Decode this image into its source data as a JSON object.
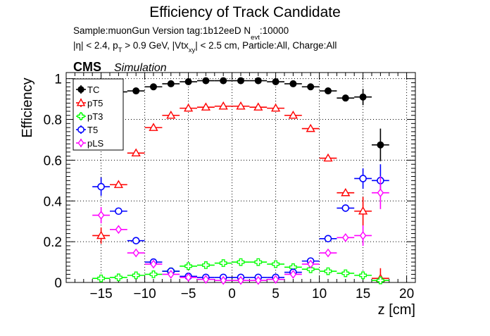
{
  "chart_data": {
    "type": "scatter",
    "title": "Efficiency of Track Candidate",
    "subtitle": {
      "sample_prefix": "Sample:muonGun   Version tag:1b12eeD  N",
      "sample_sub": "evt",
      "sample_suffix": ":10000",
      "cuts_p1": "|η| < 2.4, p",
      "cuts_sub1": "T",
      "cuts_p2": " > 0.9 GeV, |Vtx",
      "cuts_sub2": "xy",
      "cuts_p3": "| < 2.5 cm, Particle:All, Charge:All"
    },
    "cms_label": "CMS",
    "simulation_label": "Simulation",
    "xlabel": "z [cm]",
    "ylabel": "Efficiency",
    "xlim": [
      -19,
      21
    ],
    "ylim": [
      0,
      1.03
    ],
    "xticks": [
      -15,
      -10,
      -5,
      0,
      5,
      10,
      15,
      20
    ],
    "yticks": [
      0,
      0.2,
      0.4,
      0.6,
      0.8,
      1
    ],
    "ytick_labels": [
      "0",
      "0.2",
      "0.4",
      "0.6",
      "0.8",
      "1"
    ],
    "grid": true,
    "legend_position": "top-left",
    "x": [
      -17,
      -15,
      -13,
      -11,
      -9,
      -7,
      -5,
      -3,
      -1,
      1,
      3,
      5,
      7,
      9,
      11,
      13,
      15,
      17
    ],
    "x_halfwidth": 1,
    "series": [
      {
        "name": "TC",
        "marker": "filled-circle",
        "color": "#000000",
        "values": [
          null,
          0.93,
          0.935,
          0.94,
          0.96,
          0.975,
          0.985,
          0.99,
          0.99,
          0.99,
          0.99,
          0.985,
          0.975,
          0.96,
          0.94,
          0.905,
          0.91,
          0.675
        ],
        "errors": [
          null,
          0.01,
          0.01,
          0.008,
          0.006,
          0.005,
          0.004,
          0.003,
          0.003,
          0.003,
          0.003,
          0.004,
          0.005,
          0.006,
          0.008,
          0.01,
          0.04,
          0.08
        ]
      },
      {
        "name": "pT5",
        "marker": "open-triangle",
        "color": "#ff0000",
        "values": [
          null,
          0.23,
          0.48,
          0.635,
          0.76,
          0.82,
          0.855,
          0.86,
          0.865,
          0.865,
          0.86,
          0.855,
          0.82,
          0.755,
          0.61,
          0.44,
          0.35,
          0.02
        ],
        "errors": [
          null,
          0.04,
          0.015,
          0.012,
          0.01,
          0.008,
          0.007,
          0.007,
          0.006,
          0.006,
          0.007,
          0.007,
          0.008,
          0.01,
          0.012,
          0.015,
          0.07,
          0.05
        ]
      },
      {
        "name": "pT3",
        "marker": "open-cross",
        "color": "#00ff00",
        "values": [
          null,
          0.02,
          0.025,
          0.035,
          0.04,
          0.055,
          0.08,
          0.085,
          0.095,
          0.1,
          0.1,
          0.09,
          0.075,
          0.065,
          0.055,
          0.045,
          0.035,
          0.01
        ],
        "errors": [
          null,
          0.015,
          0.006,
          0.005,
          0.005,
          0.005,
          0.005,
          0.005,
          0.005,
          0.005,
          0.005,
          0.005,
          0.005,
          0.005,
          0.005,
          0.006,
          0.02,
          0.02
        ]
      },
      {
        "name": "T5",
        "marker": "open-circle",
        "color": "#0000ff",
        "values": [
          null,
          0.47,
          0.35,
          0.205,
          0.1,
          0.055,
          0.03,
          0.025,
          0.025,
          0.025,
          0.025,
          0.025,
          0.05,
          0.105,
          0.215,
          0.365,
          0.51,
          0.5
        ],
        "errors": [
          null,
          0.045,
          0.015,
          0.012,
          0.008,
          0.006,
          0.004,
          0.003,
          0.003,
          0.003,
          0.003,
          0.004,
          0.006,
          0.008,
          0.012,
          0.015,
          0.05,
          0.08
        ]
      },
      {
        "name": "pLS",
        "marker": "open-diamond",
        "color": "#ff00ff",
        "values": [
          null,
          0.33,
          0.26,
          0.145,
          0.09,
          0.04,
          0.025,
          0.015,
          0.01,
          0.01,
          0.01,
          0.015,
          0.04,
          0.09,
          0.145,
          0.22,
          0.23,
          0.44
        ],
        "errors": [
          null,
          0.04,
          0.012,
          0.01,
          0.007,
          0.005,
          0.004,
          0.003,
          0.003,
          0.003,
          0.003,
          0.004,
          0.005,
          0.007,
          0.01,
          0.012,
          0.05,
          0.08
        ]
      }
    ]
  }
}
